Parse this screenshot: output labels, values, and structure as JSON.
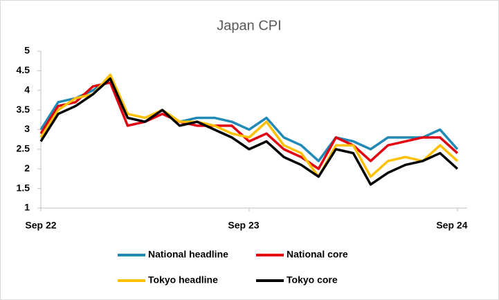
{
  "chart_data": {
    "type": "line",
    "title": "Japan CPI",
    "categories": [
      "Sep 22",
      null,
      null,
      null,
      null,
      null,
      null,
      null,
      null,
      null,
      null,
      null,
      "Sep 23",
      null,
      null,
      null,
      null,
      null,
      null,
      null,
      null,
      null,
      null,
      null,
      "Sep 24"
    ],
    "series": [
      {
        "name": "National headline",
        "color": "#2189b5",
        "values": [
          3.0,
          3.7,
          3.8,
          4.0,
          4.3,
          3.3,
          3.2,
          3.5,
          3.2,
          3.3,
          3.3,
          3.2,
          3.0,
          3.3,
          2.8,
          2.6,
          2.2,
          2.8,
          2.7,
          2.5,
          2.8,
          2.8,
          2.8,
          3.0,
          2.5
        ]
      },
      {
        "name": "National core",
        "color": "#e00010",
        "values": [
          2.9,
          3.6,
          3.7,
          4.1,
          4.2,
          3.1,
          3.2,
          3.4,
          3.2,
          3.1,
          3.1,
          3.1,
          2.7,
          2.9,
          2.5,
          2.3,
          2.0,
          2.8,
          2.6,
          2.2,
          2.6,
          2.7,
          2.8,
          2.8,
          2.4
        ]
      },
      {
        "name": "Tokyo headline",
        "color": "#ffc000",
        "values": [
          2.8,
          3.5,
          3.8,
          3.9,
          4.4,
          3.4,
          3.3,
          3.5,
          3.2,
          3.2,
          3.1,
          2.9,
          2.8,
          3.2,
          2.6,
          2.4,
          1.8,
          2.6,
          2.6,
          1.8,
          2.2,
          2.3,
          2.2,
          2.6,
          2.2
        ]
      },
      {
        "name": "Tokyo core",
        "color": "#000000",
        "values": [
          2.7,
          3.4,
          3.6,
          3.9,
          4.3,
          3.3,
          3.2,
          3.5,
          3.1,
          3.2,
          3.0,
          2.8,
          2.5,
          2.7,
          2.3,
          2.1,
          1.8,
          2.5,
          2.4,
          1.6,
          1.9,
          2.1,
          2.2,
          2.4,
          2.0
        ]
      }
    ],
    "ylim": [
      1,
      5
    ],
    "yticks": [
      1,
      1.5,
      2,
      2.5,
      3,
      3.5,
      4,
      4.5,
      5
    ],
    "grid": false,
    "legend": "bottom"
  }
}
